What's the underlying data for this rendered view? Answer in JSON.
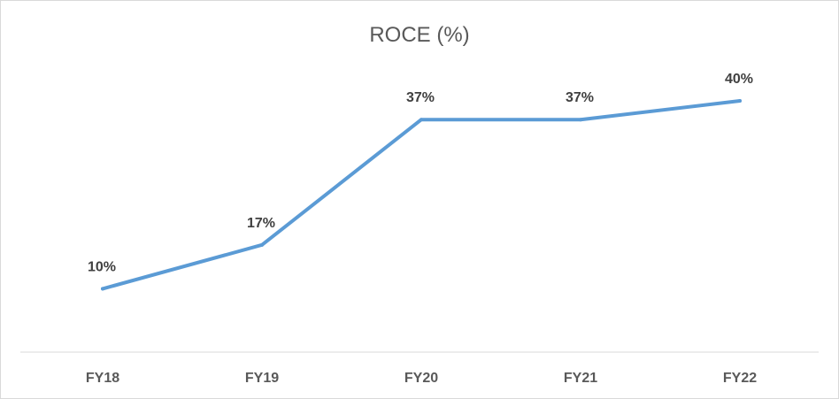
{
  "chart_data": {
    "type": "line",
    "title": "ROCE (%)",
    "xlabel": "",
    "ylabel": "",
    "categories": [
      "FY18",
      "FY19",
      "FY20",
      "FY21",
      "FY22"
    ],
    "values": [
      10,
      17,
      37,
      37,
      40
    ],
    "data_labels": [
      "10%",
      "17%",
      "37%",
      "37%",
      "40%"
    ],
    "ylim": [
      0,
      45
    ],
    "grid": false,
    "legend": "none",
    "line_color": "#5b9bd5",
    "axis_color": "#d9d9d9",
    "text_color": "#595959"
  }
}
